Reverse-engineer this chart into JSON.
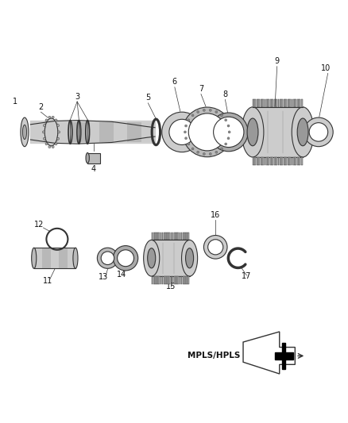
{
  "background_color": "#ffffff",
  "fig_width": 4.38,
  "fig_height": 5.33,
  "dpi": 100,
  "line_color": "#333333",
  "text_color": "#111111",
  "gray_light": "#cccccc",
  "gray_mid": "#aaaaaa",
  "gray_dark": "#888888"
}
